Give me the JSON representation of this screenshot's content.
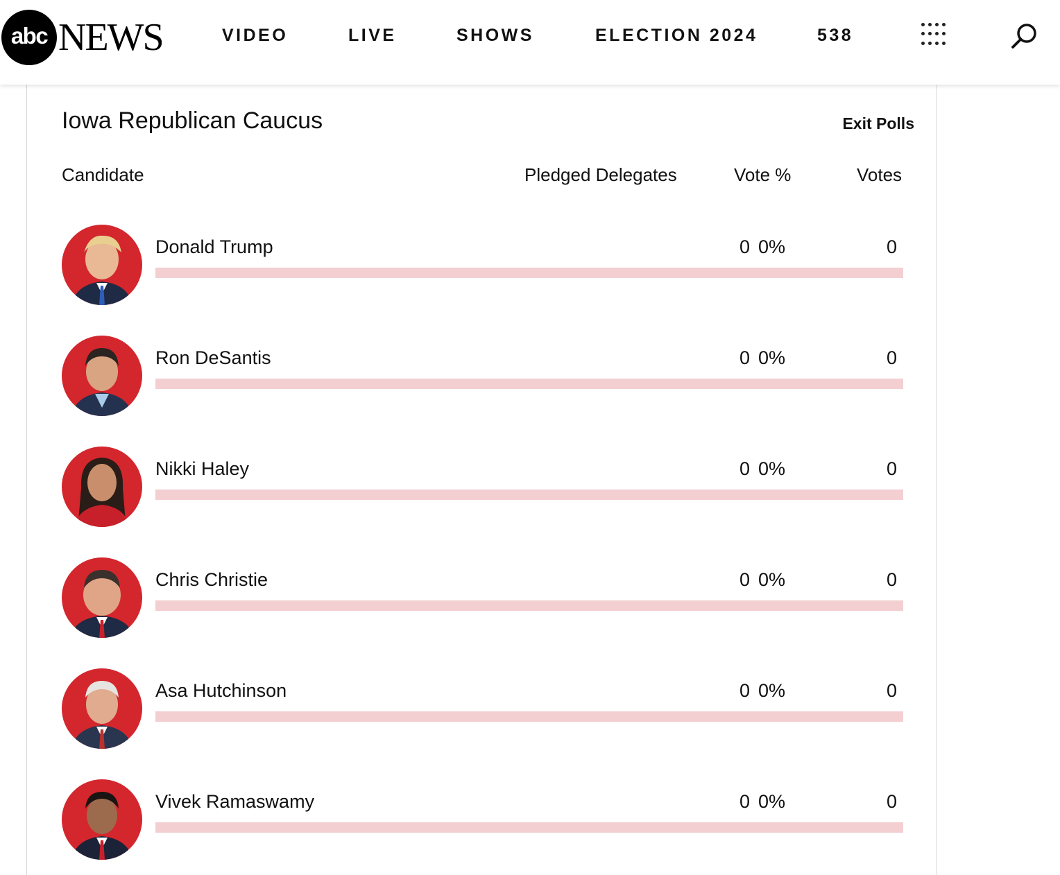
{
  "header": {
    "logo_abc": "abc",
    "logo_news": "NEWS",
    "nav": [
      "VIDEO",
      "LIVE",
      "SHOWS",
      "ELECTION 2024",
      "538"
    ],
    "icons": [
      "grid-icon",
      "search-icon"
    ]
  },
  "race": {
    "title": "Iowa Republican Caucus",
    "exit_polls": "Exit Polls",
    "columns": {
      "candidate": "Candidate",
      "pledged_delegates": "Pledged Delegates",
      "vote_pct": "Vote %",
      "votes": "Votes"
    },
    "candidates": [
      {
        "name": "Donald Trump",
        "delegates": "0",
        "vote_pct": "0%",
        "votes": "0",
        "share": 0
      },
      {
        "name": "Ron DeSantis",
        "delegates": "0",
        "vote_pct": "0%",
        "votes": "0",
        "share": 0
      },
      {
        "name": "Nikki Haley",
        "delegates": "0",
        "vote_pct": "0%",
        "votes": "0",
        "share": 0
      },
      {
        "name": "Chris Christie",
        "delegates": "0",
        "vote_pct": "0%",
        "votes": "0",
        "share": 0
      },
      {
        "name": "Asa Hutchinson",
        "delegates": "0",
        "vote_pct": "0%",
        "votes": "0",
        "share": 0
      },
      {
        "name": "Vivek Ramaswamy",
        "delegates": "0",
        "vote_pct": "0%",
        "votes": "0",
        "share": 0
      }
    ],
    "colors": {
      "party_red": "#d4262d",
      "bar_track": "#f3cfd2"
    }
  }
}
